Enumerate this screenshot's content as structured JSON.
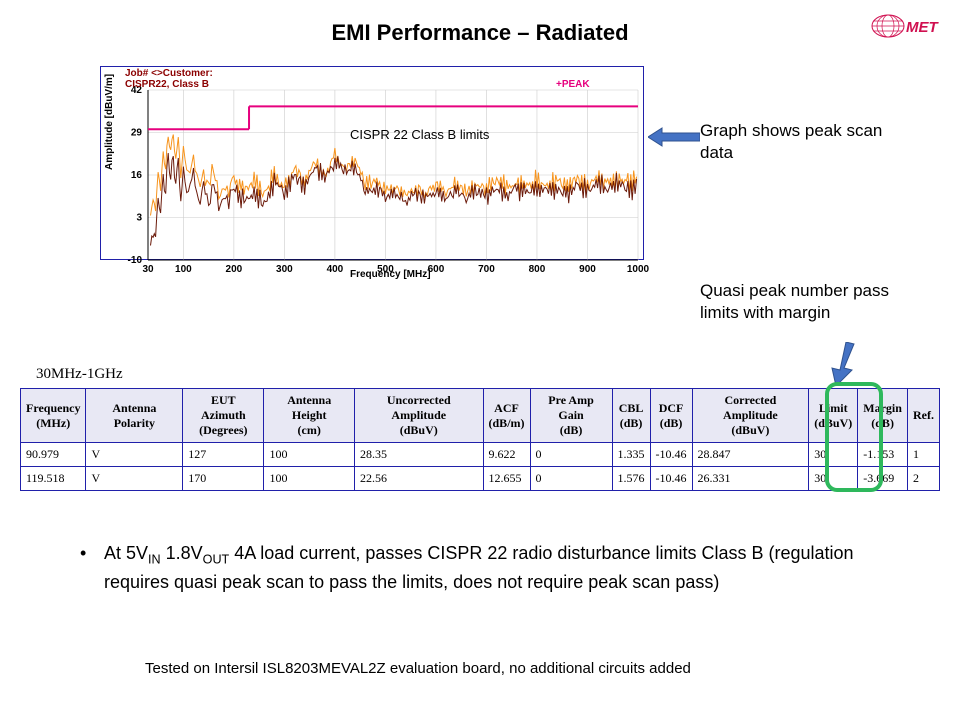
{
  "title": "EMI Performance – Radiated",
  "chart": {
    "type": "line",
    "ylabel": "Amplitude  [dBuV/m]",
    "xlabel": "Frequency [MHz]",
    "ylim": [
      -10,
      42
    ],
    "xlim": [
      30,
      1000
    ],
    "yticks": [
      -10,
      3,
      16,
      29,
      42
    ],
    "xticks": [
      30,
      100,
      200,
      300,
      400,
      500,
      600,
      700,
      800,
      900,
      1000
    ],
    "background_color": "#ffffff",
    "grid_color": "#cccccc",
    "border_color": "#2020aa",
    "job_label": "Job# <>Customer:\nCISPR22, Class B",
    "job_label_color": "#8b0000",
    "peak_label": "+PEAK",
    "peak_label_color": "#e6007e",
    "met_logo_text": "MET",
    "met_logo_color": "#d01050",
    "limit_line": {
      "color": "#e6007e",
      "width": 2,
      "segments": [
        {
          "x1": 30,
          "y1": 30,
          "x2": 230,
          "y2": 30
        },
        {
          "x1": 230,
          "y1": 30,
          "x2": 230,
          "y2": 37
        },
        {
          "x1": 230,
          "y1": 37,
          "x2": 1000,
          "y2": 37
        }
      ],
      "label": "CISPR 22 Class B limits"
    },
    "series": [
      {
        "name": "trace-orange",
        "color": "#f7941d",
        "stroke_width": 1,
        "points": [
          [
            35,
            0
          ],
          [
            40,
            8
          ],
          [
            45,
            3
          ],
          [
            50,
            18
          ],
          [
            55,
            12
          ],
          [
            60,
            25
          ],
          [
            65,
            18
          ],
          [
            70,
            28
          ],
          [
            75,
            22
          ],
          [
            80,
            26
          ],
          [
            85,
            20
          ],
          [
            90,
            27
          ],
          [
            95,
            18
          ],
          [
            100,
            24
          ],
          [
            110,
            15
          ],
          [
            120,
            20
          ],
          [
            130,
            14
          ],
          [
            140,
            18
          ],
          [
            150,
            12
          ],
          [
            160,
            17
          ],
          [
            170,
            11
          ],
          [
            180,
            14
          ],
          [
            190,
            10
          ],
          [
            200,
            15
          ],
          [
            220,
            12
          ],
          [
            240,
            14
          ],
          [
            260,
            10
          ],
          [
            280,
            16
          ],
          [
            300,
            12
          ],
          [
            320,
            18
          ],
          [
            340,
            14
          ],
          [
            360,
            20
          ],
          [
            380,
            16
          ],
          [
            400,
            22
          ],
          [
            420,
            18
          ],
          [
            440,
            21
          ],
          [
            460,
            13
          ],
          [
            480,
            14
          ],
          [
            500,
            11
          ],
          [
            520,
            12
          ],
          [
            540,
            10
          ],
          [
            560,
            12
          ],
          [
            580,
            10
          ],
          [
            600,
            13
          ],
          [
            620,
            11
          ],
          [
            640,
            13
          ],
          [
            660,
            11
          ],
          [
            680,
            13
          ],
          [
            700,
            12
          ],
          [
            720,
            14
          ],
          [
            740,
            12
          ],
          [
            760,
            14
          ],
          [
            780,
            13
          ],
          [
            800,
            14
          ],
          [
            820,
            13
          ],
          [
            840,
            14
          ],
          [
            860,
            13
          ],
          [
            880,
            15
          ],
          [
            900,
            13
          ],
          [
            920,
            15
          ],
          [
            940,
            14
          ],
          [
            960,
            15
          ],
          [
            980,
            14
          ],
          [
            1000,
            15
          ]
        ]
      },
      {
        "name": "trace-darkred",
        "color": "#6b1a0a",
        "stroke_width": 1,
        "points": [
          [
            35,
            -8
          ],
          [
            40,
            -2
          ],
          [
            45,
            -6
          ],
          [
            50,
            10
          ],
          [
            55,
            4
          ],
          [
            60,
            18
          ],
          [
            65,
            10
          ],
          [
            70,
            22
          ],
          [
            75,
            14
          ],
          [
            80,
            20
          ],
          [
            85,
            12
          ],
          [
            90,
            21
          ],
          [
            95,
            10
          ],
          [
            100,
            18
          ],
          [
            110,
            10
          ],
          [
            120,
            16
          ],
          [
            130,
            8
          ],
          [
            140,
            14
          ],
          [
            150,
            6
          ],
          [
            160,
            12
          ],
          [
            170,
            7
          ],
          [
            180,
            11
          ],
          [
            190,
            6
          ],
          [
            200,
            12
          ],
          [
            220,
            8
          ],
          [
            240,
            11
          ],
          [
            260,
            7
          ],
          [
            280,
            14
          ],
          [
            300,
            10
          ],
          [
            320,
            16
          ],
          [
            340,
            12
          ],
          [
            360,
            18
          ],
          [
            380,
            15
          ],
          [
            400,
            20
          ],
          [
            420,
            17
          ],
          [
            440,
            19
          ],
          [
            460,
            11
          ],
          [
            480,
            12
          ],
          [
            500,
            9
          ],
          [
            520,
            10
          ],
          [
            540,
            8
          ],
          [
            560,
            10
          ],
          [
            580,
            9
          ],
          [
            600,
            11
          ],
          [
            620,
            9
          ],
          [
            640,
            11
          ],
          [
            660,
            9
          ],
          [
            680,
            11
          ],
          [
            700,
            10
          ],
          [
            720,
            12
          ],
          [
            740,
            10
          ],
          [
            760,
            12
          ],
          [
            780,
            11
          ],
          [
            800,
            12
          ],
          [
            820,
            11
          ],
          [
            840,
            12
          ],
          [
            860,
            11
          ],
          [
            880,
            13
          ],
          [
            900,
            11
          ],
          [
            920,
            13
          ],
          [
            940,
            12
          ],
          [
            960,
            13
          ],
          [
            980,
            12
          ],
          [
            1000,
            13
          ]
        ]
      }
    ]
  },
  "annotations": {
    "graph": "Graph shows peak scan data",
    "quasi": "Quasi peak number pass limits with margin"
  },
  "arrow_color": "#4472c4",
  "table": {
    "title": "30MHz-1GHz",
    "border_color": "#2020aa",
    "header_bg": "#e8e8f4",
    "columns": [
      "Frequency (MHz)",
      "Antenna Polarity",
      "EUT Azimuth (Degrees)",
      "Antenna Height (cm)",
      "Uncorrected Amplitude (dBuV)",
      "ACF (dB/m)",
      "Pre Amp Gain (dB)",
      "CBL (dB)",
      "DCF (dB)",
      "Corrected Amplitude (dBuV)",
      "Limit (dBuV)",
      "Margin (dB)",
      "Ref."
    ],
    "rows": [
      [
        "90.979",
        "V",
        "127",
        "100",
        "28.35",
        "9.622",
        "0",
        "1.335",
        "-10.46",
        "28.847",
        "30",
        "-1.153",
        "1"
      ],
      [
        "119.518",
        "V",
        "170",
        "100",
        "22.56",
        "12.655",
        "0",
        "1.576",
        "-10.46",
        "26.331",
        "30",
        "-3.669",
        "2"
      ]
    ],
    "highlight_color": "#2eb85c"
  },
  "bullet_html": "At 5V<sub>IN</sub> 1.8V<sub>OUT</sub> 4A load current, passes CISPR 22 radio disturbance limits Class B (regulation requires quasi peak scan to pass the limits, does not require peak scan pass)",
  "footer": "Tested on Intersil ISL8203MEVAL2Z evaluation board, no additional circuits added"
}
